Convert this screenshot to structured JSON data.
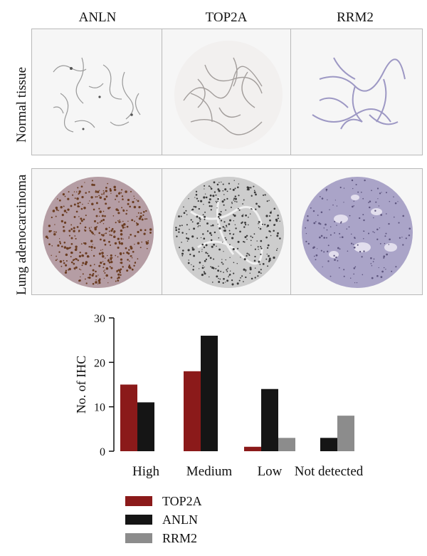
{
  "columns": [
    "ANLN",
    "TOP2A",
    "RRM2"
  ],
  "rows": [
    "Normal tissue",
    "Lung adenocarcinoma"
  ],
  "colors": {
    "TOP2A": "#8b1a1a",
    "ANLN": "#151515",
    "RRM2": "#8c8c8c",
    "stain_brown": "#6b3d22",
    "stain_purple": "#8e86b8"
  },
  "chart_data": {
    "type": "bar",
    "categories": [
      "High",
      "Medium",
      "Low",
      "Not detected"
    ],
    "series": [
      {
        "name": "TOP2A",
        "values": [
          15,
          18,
          1,
          0
        ]
      },
      {
        "name": "ANLN",
        "values": [
          11,
          26,
          14,
          3
        ]
      },
      {
        "name": "RRM2",
        "values": [
          0,
          0,
          3,
          8
        ]
      }
    ],
    "ylabel": "No. of IHC",
    "xlabel": "",
    "ylim": [
      0,
      30
    ],
    "yticks": [
      0,
      10,
      20,
      30
    ],
    "grid": false,
    "legend": "bottom-left"
  }
}
